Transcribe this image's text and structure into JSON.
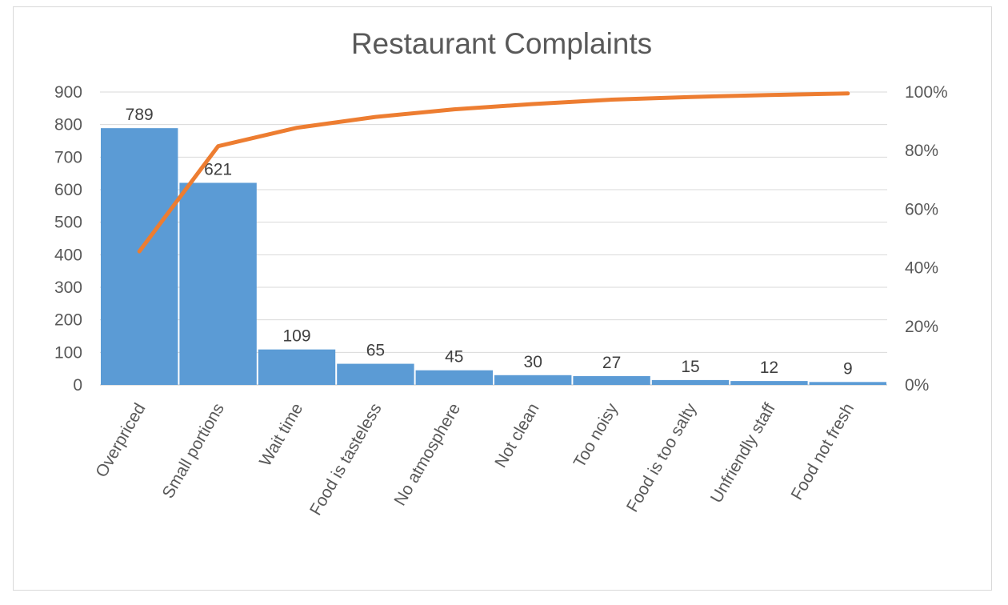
{
  "chart_data": {
    "type": "bar",
    "title": "Restaurant Complaints",
    "categories": [
      "Overpriced",
      "Small portions",
      "Wait time",
      "Food is tasteless",
      "No atmosphere",
      "Not clean",
      "Too noisy",
      "Food is too salty",
      "Unfriendly staff",
      "Food not fresh"
    ],
    "series": [
      {
        "type": "bar",
        "axis": "left",
        "color": "#5B9BD5",
        "values": [
          789,
          621,
          109,
          65,
          45,
          30,
          27,
          15,
          12,
          9
        ]
      },
      {
        "type": "line",
        "axis": "right",
        "color": "#ED7D31",
        "values": [
          0.456,
          0.815,
          0.878,
          0.915,
          0.941,
          0.959,
          0.974,
          0.983,
          0.99,
          0.995
        ]
      }
    ],
    "y_left": {
      "min": 0,
      "max": 900,
      "ticks": [
        "0",
        "100",
        "200",
        "300",
        "400",
        "500",
        "600",
        "700",
        "800",
        "900"
      ]
    },
    "y_right": {
      "min": 0,
      "max": 1,
      "ticks": [
        "0%",
        "20%",
        "40%",
        "60%",
        "80%",
        "100%"
      ]
    },
    "data_labels": [
      "789",
      "621",
      "109",
      "65",
      "45",
      "30",
      "27",
      "15",
      "12",
      "9"
    ],
    "grid": true,
    "legend": "none",
    "gridline_color": "#d9d9d9"
  }
}
